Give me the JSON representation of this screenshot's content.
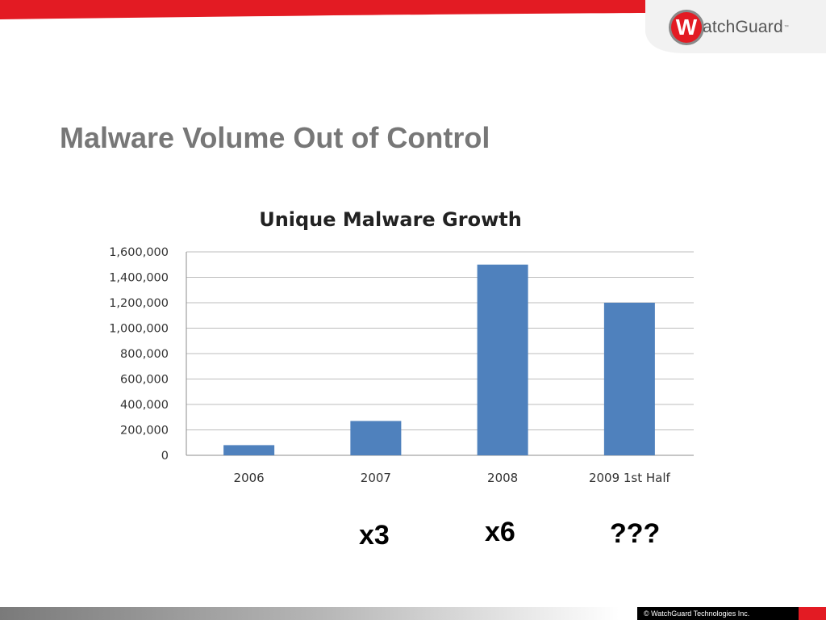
{
  "slide": {
    "title": "Malware Volume Out of Control",
    "logo_mark": "W",
    "logo_text": "atchGuard",
    "logo_tm": "™",
    "footer": "© WatchGuard Technologies Inc.",
    "multipliers": [
      "x3",
      "x6",
      "???"
    ],
    "colors": {
      "accent": "#e31b23",
      "bar": "#4f81bd",
      "title": "#777777"
    }
  },
  "chart_data": {
    "type": "bar",
    "title": "Unique Malware Growth",
    "categories": [
      "2006",
      "2007",
      "2008",
      "2009 1st Half"
    ],
    "values": [
      80000,
      270000,
      1500000,
      1200000
    ],
    "yticks": [
      "0",
      "200,000",
      "400,000",
      "600,000",
      "800,000",
      "1,000,000",
      "1,200,000",
      "1,400,000",
      "1,600,000"
    ],
    "ylim": [
      0,
      1600000
    ],
    "grid": true,
    "legend": "none",
    "xlabel": "",
    "ylabel": ""
  }
}
